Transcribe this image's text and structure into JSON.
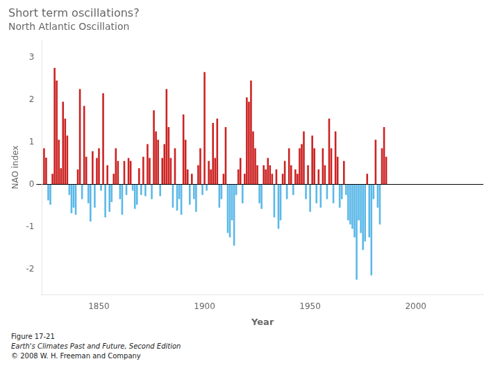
{
  "chart_data": {
    "type": "bar",
    "title": "Short term oscillations?",
    "subtitle": "North Atlantic Oscillation",
    "xlabel": "Year",
    "ylabel": "NAO index",
    "x": [
      1824,
      1825,
      1826,
      1827,
      1828,
      1829,
      1830,
      1831,
      1832,
      1833,
      1834,
      1835,
      1836,
      1837,
      1838,
      1839,
      1840,
      1841,
      1842,
      1843,
      1844,
      1845,
      1846,
      1847,
      1848,
      1849,
      1850,
      1851,
      1852,
      1853,
      1854,
      1855,
      1856,
      1857,
      1858,
      1859,
      1860,
      1861,
      1862,
      1863,
      1864,
      1865,
      1866,
      1867,
      1868,
      1869,
      1870,
      1871,
      1872,
      1873,
      1874,
      1875,
      1876,
      1877,
      1878,
      1879,
      1880,
      1881,
      1882,
      1883,
      1884,
      1885,
      1886,
      1887,
      1888,
      1889,
      1890,
      1891,
      1892,
      1893,
      1894,
      1895,
      1896,
      1897,
      1898,
      1899,
      1900,
      1901,
      1902,
      1903,
      1904,
      1905,
      1906,
      1907,
      1908,
      1909,
      1910,
      1911,
      1912,
      1913,
      1914,
      1915,
      1916,
      1917,
      1918,
      1919,
      1920,
      1921,
      1922,
      1923,
      1924,
      1925,
      1926,
      1927,
      1928,
      1929,
      1930,
      1931,
      1932,
      1933,
      1934,
      1935,
      1936,
      1937,
      1938,
      1939,
      1940,
      1941,
      1942,
      1943,
      1944,
      1945,
      1946,
      1947,
      1948,
      1949,
      1950,
      1951,
      1952,
      1953,
      1954,
      1955,
      1956,
      1957,
      1958,
      1959,
      1960,
      1961,
      1962,
      1963,
      1964,
      1965,
      1966,
      1967,
      1968,
      1969,
      1970,
      1971,
      1972,
      1973,
      1974,
      1975,
      1976,
      1977,
      1978,
      1979,
      1980,
      1981,
      1982,
      1983,
      1984,
      1985,
      1986
    ],
    "values": [
      0.85,
      0.63,
      -0.38,
      -0.48,
      0.25,
      2.75,
      2.45,
      1.05,
      0.38,
      1.95,
      1.55,
      1.15,
      -0.25,
      -0.68,
      -0.55,
      -0.72,
      0.35,
      2.25,
      -0.35,
      1.85,
      0.65,
      -0.45,
      -0.88,
      0.78,
      -0.55,
      0.62,
      0.85,
      -0.15,
      2.15,
      -0.78,
      0.45,
      -0.65,
      -0.42,
      0.25,
      0.85,
      0.55,
      -0.35,
      -0.72,
      0.55,
      -0.25,
      0.62,
      0.55,
      -0.15,
      -0.58,
      -0.48,
      0.38,
      -0.25,
      0.65,
      -0.28,
      0.95,
      0.62,
      -0.35,
      1.75,
      1.25,
      1.05,
      -0.28,
      0.62,
      0.95,
      2.25,
      1.35,
      0.62,
      -0.55,
      0.85,
      -0.62,
      -0.35,
      -0.72,
      1.65,
      1.05,
      0.35,
      -0.48,
      0.25,
      -0.35,
      -0.65,
      0.45,
      0.85,
      -0.25,
      2.65,
      -0.15,
      0.55,
      0.35,
      1.45,
      0.62,
      1.55,
      -0.55,
      -0.35,
      0.25,
      1.35,
      -1.15,
      -1.25,
      -0.85,
      -1.45,
      -0.25,
      0.35,
      0.62,
      -0.45,
      0.25,
      2.05,
      1.95,
      2.45,
      1.25,
      0.85,
      0.45,
      -0.45,
      -0.58,
      0.45,
      0.35,
      0.62,
      0.45,
      0.25,
      -0.78,
      0.35,
      -1.05,
      -0.85,
      0.25,
      0.55,
      -0.35,
      0.85,
      0.45,
      -0.25,
      0.35,
      0.25,
      0.85,
      0.95,
      1.25,
      -0.35,
      0.45,
      -0.65,
      1.15,
      0.85,
      -0.45,
      0.35,
      -0.55,
      0.85,
      0.45,
      -0.35,
      1.55,
      0.85,
      -0.45,
      1.25,
      0.65,
      -0.55,
      -0.35,
      0.55,
      -0.25,
      -0.85,
      -0.95,
      -1.05,
      -1.25,
      -2.25,
      -0.85,
      -1.15,
      -1.55,
      -1.35,
      0.25,
      -1.25,
      -2.15,
      -0.35,
      1.05,
      -0.55,
      -0.95,
      0.85,
      1.35,
      0.65
    ],
    "colors": [
      "#CC2222",
      "#CC2222",
      "#5BB8E8",
      "#5BB8E8",
      "#CC2222",
      "#CC2222",
      "#CC2222",
      "#CC2222",
      "#CC2222",
      "#CC2222",
      "#CC2222",
      "#CC2222",
      "#5BB8E8",
      "#5BB8E8",
      "#5BB8E8",
      "#5BB8E8",
      "#CC2222",
      "#CC2222",
      "#5BB8E8",
      "#CC2222",
      "#CC2222",
      "#5BB8E8",
      "#5BB8E8",
      "#CC2222",
      "#5BB8E8",
      "#CC2222",
      "#CC2222",
      "#5BB8E8",
      "#CC2222",
      "#5BB8E8",
      "#CC2222",
      "#5BB8E8",
      "#5BB8E8",
      "#CC2222",
      "#CC2222",
      "#CC2222",
      "#5BB8E8",
      "#5BB8E8",
      "#CC2222",
      "#5BB8E8",
      "#CC2222",
      "#CC2222",
      "#5BB8E8",
      "#5BB8E8",
      "#5BB8E8",
      "#CC2222",
      "#5BB8E8",
      "#CC2222",
      "#5BB8E8",
      "#CC2222",
      "#CC2222",
      "#5BB8E8",
      "#CC2222",
      "#CC2222",
      "#CC2222",
      "#5BB8E8",
      "#CC2222",
      "#CC2222",
      "#CC2222",
      "#CC2222",
      "#CC2222",
      "#5BB8E8",
      "#CC2222",
      "#5BB8E8",
      "#5BB8E8",
      "#5BB8E8",
      "#CC2222",
      "#CC2222",
      "#CC2222",
      "#5BB8E8",
      "#CC2222",
      "#5BB8E8",
      "#5BB8E8",
      "#CC2222",
      "#CC2222",
      "#5BB8E8",
      "#CC2222",
      "#5BB8E8",
      "#CC2222",
      "#CC2222",
      "#CC2222",
      "#CC2222",
      "#CC2222",
      "#5BB8E8",
      "#5BB8E8",
      "#CC2222",
      "#CC2222",
      "#5BB8E8",
      "#5BB8E8",
      "#5BB8E8",
      "#5BB8E8",
      "#5BB8E8",
      "#CC2222",
      "#CC2222",
      "#5BB8E8",
      "#CC2222",
      "#CC2222",
      "#CC2222",
      "#CC2222",
      "#CC2222",
      "#CC2222",
      "#CC2222",
      "#5BB8E8",
      "#5BB8E8",
      "#CC2222",
      "#CC2222",
      "#CC2222",
      "#CC2222",
      "#CC2222",
      "#5BB8E8",
      "#CC2222",
      "#5BB8E8",
      "#5BB8E8",
      "#CC2222",
      "#CC2222",
      "#5BB8E8",
      "#CC2222",
      "#CC2222",
      "#5BB8E8",
      "#CC2222",
      "#CC2222",
      "#CC2222",
      "#CC2222",
      "#CC2222",
      "#5BB8E8",
      "#CC2222",
      "#5BB8E8",
      "#CC2222",
      "#CC2222",
      "#5BB8E8",
      "#CC2222",
      "#5BB8E8",
      "#CC2222",
      "#CC2222",
      "#5BB8E8",
      "#CC2222",
      "#CC2222",
      "#5BB8E8",
      "#CC2222",
      "#CC2222",
      "#5BB8E8",
      "#5BB8E8",
      "#CC2222",
      "#5BB8E8",
      "#5BB8E8",
      "#5BB8E8",
      "#5BB8E8",
      "#5BB8E8",
      "#5BB8E8",
      "#5BB8E8",
      "#5BB8E8",
      "#5BB8E8",
      "#5BB8E8",
      "#CC2222",
      "#5BB8E8",
      "#5BB8E8",
      "#5BB8E8",
      "#CC2222",
      "#5BB8E8",
      "#5BB8E8",
      "#CC2222",
      "#CC2222",
      "#CC2222"
    ],
    "xlim": [
      1823,
      2032
    ],
    "xticks": [
      1850,
      1900,
      1950,
      2000
    ],
    "ylim": [
      -2.6,
      3.4
    ],
    "yticks": [
      -2,
      -1,
      0,
      1,
      2,
      3
    ],
    "grid": false,
    "annotations": [
      "Figure 17-21",
      "Earth's Climates Past and Future, Second Edition",
      "© 2008 W. H. Freeman and Company"
    ]
  }
}
